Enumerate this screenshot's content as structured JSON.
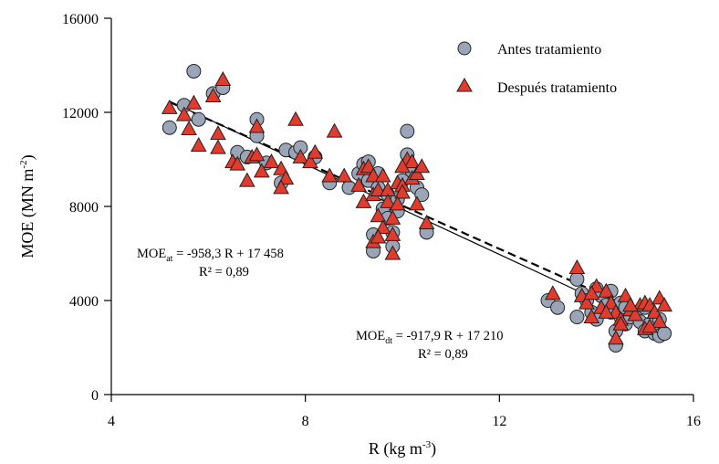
{
  "chart_data": {
    "type": "scatter",
    "xlabel": "R  (kg m",
    "xlabel_sup": "-3",
    "xlabel_end": ")",
    "ylabel": "MOE  (MN m",
    "ylabel_sup": "-2",
    "ylabel_end": ")",
    "xlim": [
      4,
      16
    ],
    "ylim": [
      0,
      16000
    ],
    "xticks": [
      4,
      8,
      12,
      16
    ],
    "yticks": [
      0,
      4000,
      8000,
      12000,
      16000
    ],
    "xtick_labels": [
      "4",
      "8",
      "12",
      "16"
    ],
    "ytick_labels": [
      "0",
      "4000",
      "8000",
      "12000",
      "16000"
    ],
    "grid": false,
    "legend_position": "top-right",
    "series": [
      {
        "name": "Antes tratamiento",
        "marker": "circle",
        "color": "#9aa6b8",
        "points": [
          [
            5.2,
            11350
          ],
          [
            5.5,
            12300
          ],
          [
            5.7,
            13750
          ],
          [
            5.8,
            11700
          ],
          [
            6.1,
            12800
          ],
          [
            6.3,
            13050
          ],
          [
            6.6,
            10300
          ],
          [
            6.8,
            10100
          ],
          [
            7.0,
            11700
          ],
          [
            7.0,
            11000
          ],
          [
            7.2,
            9850
          ],
          [
            7.5,
            9000
          ],
          [
            7.6,
            10400
          ],
          [
            7.8,
            10300
          ],
          [
            7.9,
            10500
          ],
          [
            8.2,
            10100
          ],
          [
            8.5,
            9000
          ],
          [
            8.9,
            8800
          ],
          [
            9.1,
            9400
          ],
          [
            9.2,
            9800
          ],
          [
            9.3,
            9900
          ],
          [
            9.3,
            9100
          ],
          [
            9.4,
            6800
          ],
          [
            9.4,
            6100
          ],
          [
            9.5,
            9400
          ],
          [
            9.5,
            8800
          ],
          [
            9.6,
            7900
          ],
          [
            9.7,
            7500
          ],
          [
            9.7,
            8500
          ],
          [
            9.8,
            6900
          ],
          [
            9.8,
            6300
          ],
          [
            9.9,
            8300
          ],
          [
            10.0,
            9100
          ],
          [
            10.1,
            11200
          ],
          [
            10.1,
            10200
          ],
          [
            10.2,
            9500
          ],
          [
            10.3,
            8800
          ],
          [
            10.4,
            8500
          ],
          [
            10.5,
            6900
          ],
          [
            9.9,
            7800
          ],
          [
            13.0,
            4000
          ],
          [
            13.2,
            3700
          ],
          [
            13.6,
            4900
          ],
          [
            13.6,
            3300
          ],
          [
            13.7,
            4300
          ],
          [
            13.8,
            4000
          ],
          [
            13.9,
            3500
          ],
          [
            14.0,
            3200
          ],
          [
            14.0,
            4500
          ],
          [
            14.1,
            4200
          ],
          [
            14.2,
            3800
          ],
          [
            14.3,
            4400
          ],
          [
            14.3,
            3500
          ],
          [
            14.4,
            2700
          ],
          [
            14.4,
            2100
          ],
          [
            14.5,
            3900
          ],
          [
            14.5,
            3300
          ],
          [
            14.6,
            3700
          ],
          [
            14.6,
            3000
          ],
          [
            14.7,
            3300
          ],
          [
            14.8,
            3500
          ],
          [
            14.9,
            3100
          ],
          [
            15.0,
            2700
          ],
          [
            15.0,
            3700
          ],
          [
            15.1,
            3000
          ],
          [
            15.2,
            2600
          ],
          [
            15.3,
            3200
          ],
          [
            15.3,
            2500
          ],
          [
            15.4,
            2600
          ]
        ]
      },
      {
        "name": "Después tratamiento",
        "marker": "triangle",
        "color": "#e23b2e",
        "points": [
          [
            5.2,
            12200
          ],
          [
            5.5,
            11900
          ],
          [
            5.6,
            11300
          ],
          [
            5.7,
            12400
          ],
          [
            5.8,
            10600
          ],
          [
            6.1,
            12700
          ],
          [
            6.2,
            11100
          ],
          [
            6.3,
            13400
          ],
          [
            6.2,
            10500
          ],
          [
            6.5,
            9900
          ],
          [
            6.6,
            9800
          ],
          [
            6.8,
            9100
          ],
          [
            6.9,
            10100
          ],
          [
            7.0,
            10200
          ],
          [
            7.1,
            9500
          ],
          [
            7.0,
            11400
          ],
          [
            7.3,
            9900
          ],
          [
            7.5,
            9600
          ],
          [
            7.6,
            9200
          ],
          [
            7.5,
            8800
          ],
          [
            7.8,
            11700
          ],
          [
            7.9,
            10100
          ],
          [
            8.1,
            9900
          ],
          [
            8.2,
            10300
          ],
          [
            8.5,
            9300
          ],
          [
            8.6,
            11200
          ],
          [
            8.8,
            9300
          ],
          [
            9.1,
            8900
          ],
          [
            9.2,
            9600
          ],
          [
            9.3,
            9700
          ],
          [
            9.4,
            9300
          ],
          [
            9.2,
            8200
          ],
          [
            9.4,
            8500
          ],
          [
            9.5,
            8700
          ],
          [
            9.5,
            7600
          ],
          [
            9.6,
            9300
          ],
          [
            9.6,
            7100
          ],
          [
            9.7,
            8700
          ],
          [
            9.7,
            8200
          ],
          [
            9.8,
            7500
          ],
          [
            9.8,
            6800
          ],
          [
            9.9,
            9000
          ],
          [
            10.0,
            8900
          ],
          [
            10.0,
            8600
          ],
          [
            10.1,
            10000
          ],
          [
            10.2,
            9900
          ],
          [
            10.2,
            9200
          ],
          [
            10.3,
            9400
          ],
          [
            10.3,
            8100
          ],
          [
            10.5,
            7300
          ],
          [
            9.4,
            6500
          ],
          [
            9.8,
            6000
          ],
          [
            10.4,
            9700
          ],
          [
            9.5,
            6700
          ],
          [
            9.9,
            8100
          ],
          [
            10.0,
            9700
          ],
          [
            13.1,
            4300
          ],
          [
            13.6,
            5400
          ],
          [
            13.7,
            4200
          ],
          [
            13.8,
            3900
          ],
          [
            13.9,
            3300
          ],
          [
            14.0,
            4600
          ],
          [
            14.1,
            3700
          ],
          [
            14.2,
            4400
          ],
          [
            14.3,
            3900
          ],
          [
            14.4,
            3500
          ],
          [
            14.5,
            3200
          ],
          [
            14.5,
            3000
          ],
          [
            14.6,
            4200
          ],
          [
            14.7,
            3600
          ],
          [
            14.8,
            3400
          ],
          [
            14.9,
            3800
          ],
          [
            15.0,
            3900
          ],
          [
            15.0,
            2800
          ],
          [
            15.1,
            3800
          ],
          [
            15.2,
            3500
          ],
          [
            15.3,
            3100
          ],
          [
            15.3,
            4100
          ],
          [
            15.4,
            3800
          ],
          [
            15.1,
            2900
          ],
          [
            14.7,
            3800
          ],
          [
            14.4,
            2400
          ],
          [
            14.2,
            3500
          ],
          [
            13.9,
            4300
          ]
        ]
      }
    ],
    "fits": [
      {
        "label": "MOE",
        "sub": "at",
        "equation": " = -958,3 R + 17 458",
        "r2": "R² = 0,89",
        "x_range": [
          5.2,
          15.4
        ],
        "slope": -958.3,
        "intercept": 17458,
        "style": "solid"
      },
      {
        "label": "MOE",
        "sub": "dt",
        "equation": " = -917,9 R + 17 210",
        "r2": "R² = 0,89",
        "x_range": [
          5.2,
          15.4
        ],
        "slope": -917.9,
        "intercept": 17210,
        "style": "dashed"
      }
    ]
  }
}
